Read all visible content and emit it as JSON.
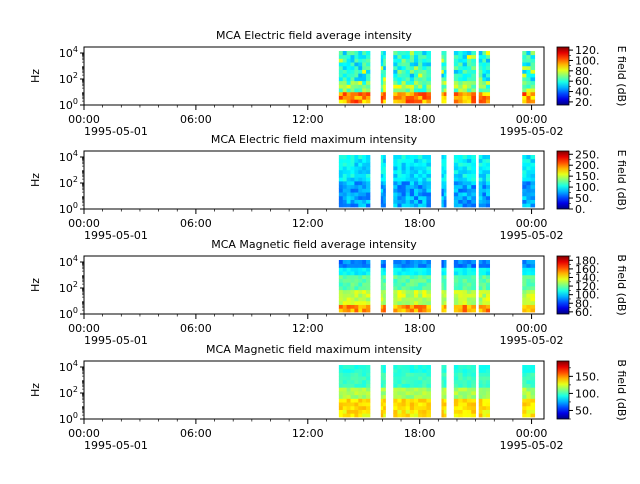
{
  "chart_data": [
    {
      "type": "heatmap",
      "title": "MCA  Electric field average intensity",
      "ylabel": "Hz",
      "y_scale": "log",
      "y_ticks": [
        {
          "base": "10",
          "exp": "0"
        },
        {
          "base": "10",
          "exp": "2"
        },
        {
          "base": "10",
          "exp": "4"
        }
      ],
      "x_ticks": [
        "00:00",
        "06:00",
        "12:00",
        "18:00",
        "00:00"
      ],
      "x_dates": [
        "1995-05-01",
        "1995-05-02"
      ],
      "colorbar_label": "E field (dB)",
      "colorbar_ticks": [
        "20.",
        "40.",
        "60.",
        "80.",
        "100.",
        "120."
      ],
      "colorbar_range": [
        14,
        126
      ],
      "style": "efield-avg"
    },
    {
      "type": "heatmap",
      "title": "MCA  Electric field maximum intensity",
      "ylabel": "Hz",
      "y_scale": "log",
      "y_ticks": [
        {
          "base": "10",
          "exp": "0"
        },
        {
          "base": "10",
          "exp": "2"
        },
        {
          "base": "10",
          "exp": "4"
        }
      ],
      "x_ticks": [
        "00:00",
        "06:00",
        "12:00",
        "18:00",
        "00:00"
      ],
      "x_dates": [
        "1995-05-01",
        "1995-05-02"
      ],
      "colorbar_label": "E field (dB)",
      "colorbar_ticks": [
        "0.",
        "50.",
        "100.",
        "150.",
        "200.",
        "250."
      ],
      "colorbar_range": [
        0,
        265
      ],
      "style": "efield-max"
    },
    {
      "type": "heatmap",
      "title": "MCA  Magnetic field average intensity",
      "ylabel": "Hz",
      "y_scale": "log",
      "y_ticks": [
        {
          "base": "10",
          "exp": "0"
        },
        {
          "base": "10",
          "exp": "2"
        },
        {
          "base": "10",
          "exp": "4"
        }
      ],
      "x_ticks": [
        "00:00",
        "06:00",
        "12:00",
        "18:00",
        "00:00"
      ],
      "x_dates": [
        "1995-05-01",
        "1995-05-02"
      ],
      "colorbar_label": "B field (dB)",
      "colorbar_ticks": [
        "60.",
        "80.",
        "100.",
        "120.",
        "140.",
        "160.",
        "180."
      ],
      "colorbar_range": [
        55,
        190
      ],
      "style": "bfield-avg"
    },
    {
      "type": "heatmap",
      "title": "MCA  Magnetic field maximum intensity",
      "ylabel": "Hz",
      "y_scale": "log",
      "y_ticks": [
        {
          "base": "10",
          "exp": "0"
        },
        {
          "base": "10",
          "exp": "2"
        },
        {
          "base": "10",
          "exp": "4"
        }
      ],
      "x_ticks": [
        "00:00",
        "06:00",
        "12:00",
        "18:00",
        "00:00"
      ],
      "x_dates": [
        "1995-05-01",
        "1995-05-02"
      ],
      "colorbar_label": "B field (dB)",
      "colorbar_ticks": [
        "50.",
        "100.",
        "150."
      ],
      "colorbar_range": [
        25,
        195
      ],
      "style": "bfield-max"
    }
  ],
  "data_segments": [
    [
      "1995-05-01 13:40",
      "1995-05-01 15:20"
    ],
    [
      "1995-05-01 15:55",
      "1995-05-01 16:10"
    ],
    [
      "1995-05-01 16:35",
      "1995-05-01 18:35"
    ],
    [
      "1995-05-01 19:10",
      "1995-05-01 19:25"
    ],
    [
      "1995-05-01 19:50",
      "1995-05-01 21:00"
    ],
    [
      "1995-05-01 21:10",
      "1995-05-01 21:45"
    ],
    [
      "1995-05-01 23:30",
      "1995-05-02 00:10"
    ]
  ],
  "x_range": [
    "1995-05-01 00:00",
    "1995-05-02 00:40"
  ]
}
